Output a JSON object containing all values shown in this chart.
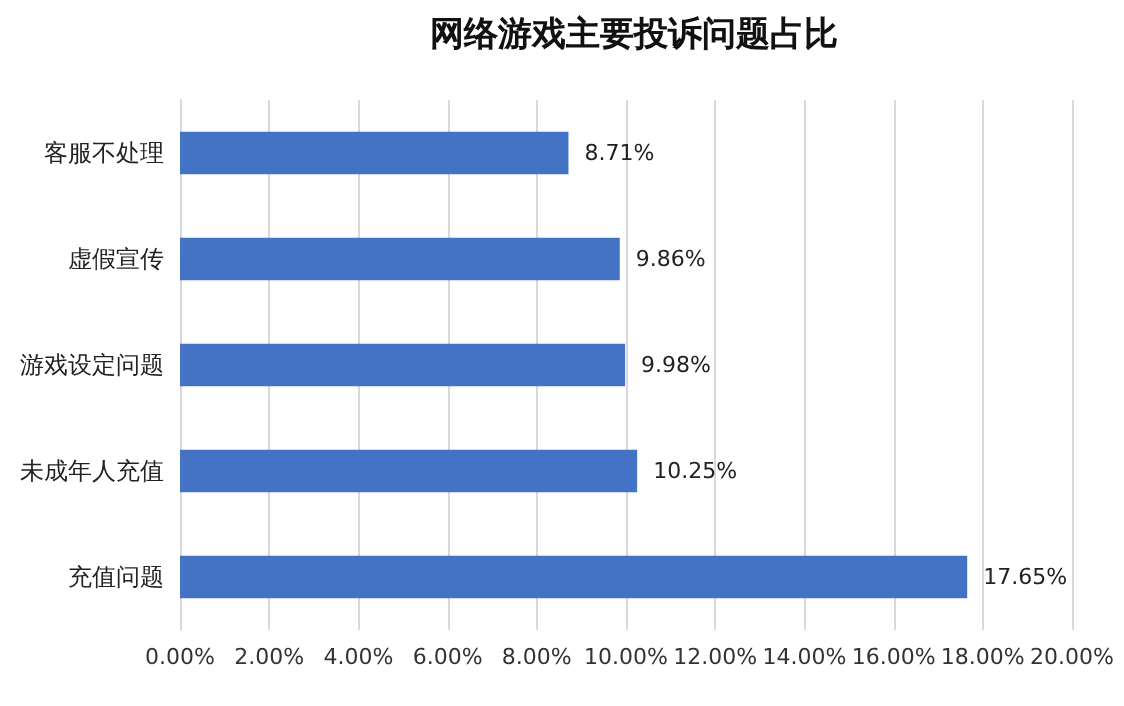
{
  "chart_data": {
    "type": "bar",
    "orientation": "horizontal",
    "title": "网络游戏主要投诉问题占比",
    "categories": [
      "客服不处理",
      "虚假宣传",
      "游戏设定问题",
      "未成年人充值",
      "充值问题"
    ],
    "values": [
      8.71,
      9.86,
      9.98,
      10.25,
      17.65
    ],
    "value_labels": [
      "8.71%",
      "9.86%",
      "9.98%",
      "10.25%",
      "17.65%"
    ],
    "color": "#4472c4",
    "xlim": [
      0,
      20
    ],
    "xticks": [
      {
        "value": 0,
        "label": "0.00%"
      },
      {
        "value": 2,
        "label": "2.00%"
      },
      {
        "value": 4,
        "label": "4.00%"
      },
      {
        "value": 6,
        "label": "6.00%"
      },
      {
        "value": 8,
        "label": "8.00%"
      },
      {
        "value": 10,
        "label": "10.00%"
      },
      {
        "value": 12,
        "label": "12.00%"
      },
      {
        "value": 14,
        "label": "14.00%"
      },
      {
        "value": 16,
        "label": "16.00%"
      },
      {
        "value": 18,
        "label": "18.00%"
      },
      {
        "value": 20,
        "label": "20.00%"
      }
    ],
    "grid": "x"
  }
}
